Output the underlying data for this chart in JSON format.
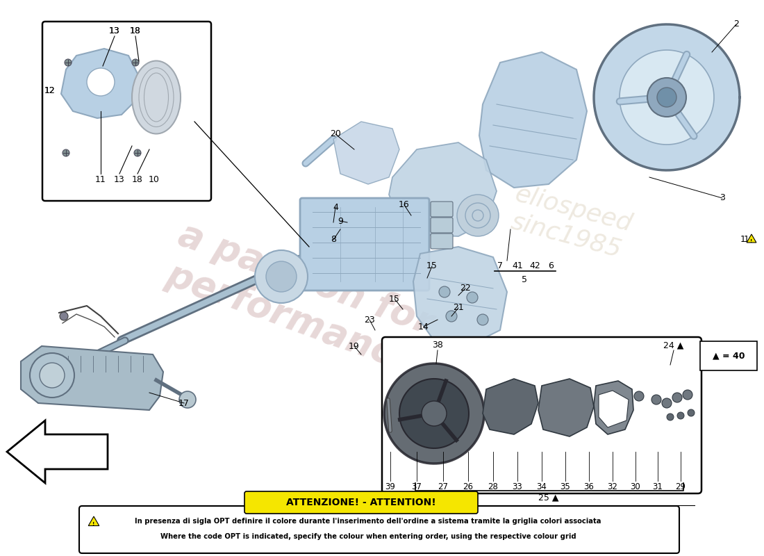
{
  "bg_color": "#ffffff",
  "fig_width": 11.0,
  "fig_height": 8.0,
  "attention_title": "ATTENZIONE! - ATTENTION!",
  "attention_line1": "In presenza di sigla OPT definire il colore durante l'inserimento dell'ordine a sistema tramite la griglia colori associata",
  "attention_line2": "Where the code OPT is indicated, specify the colour when entering order, using the respective colour grid",
  "part_color_light": "#b8d0e4",
  "part_color_mid": "#8fa8be",
  "part_color_dark": "#607080",
  "part_color_grey": "#a0a8b0",
  "watermark_color": "#d4b8b8",
  "watermark_color2": "#c8b898"
}
